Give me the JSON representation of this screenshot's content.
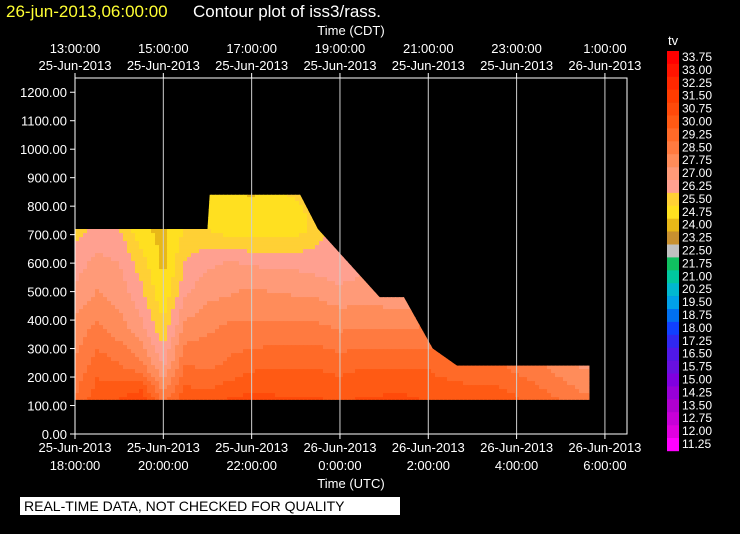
{
  "header": {
    "time_stamp": "26-jun-2013,06:00:00",
    "title": "Contour plot of iss3/rass."
  },
  "banner": "REAL-TIME DATA, NOT CHECKED FOR QUALITY",
  "chart_data": {
    "type": "heatmap",
    "title": "Contour plot of iss3/rass.",
    "top_axis_label": "Time (CDT)",
    "xlabel": "Time (UTC)",
    "ylabel": "",
    "x_unit": "hours since 25-Jun-2013 18:00 UTC",
    "xlim": [
      0,
      12.5
    ],
    "ylim": [
      0,
      1250
    ],
    "grid": true,
    "bottom_ticks": [
      {
        "x": 0,
        "date": "25-Jun-2013",
        "time": "18:00:00"
      },
      {
        "x": 2,
        "date": "25-Jun-2013",
        "time": "20:00:00"
      },
      {
        "x": 4,
        "date": "25-Jun-2013",
        "time": "22:00:00"
      },
      {
        "x": 6,
        "date": "26-Jun-2013",
        "time": "0:00:00"
      },
      {
        "x": 8,
        "date": "26-Jun-2013",
        "time": "2:00:00"
      },
      {
        "x": 10,
        "date": "26-Jun-2013",
        "time": "4:00:00"
      },
      {
        "x": 12,
        "date": "26-Jun-2013",
        "time": "6:00:00"
      }
    ],
    "top_ticks": [
      {
        "x": 0,
        "time": "13:00:00",
        "date": "25-Jun-2013"
      },
      {
        "x": 2,
        "time": "15:00:00",
        "date": "25-Jun-2013"
      },
      {
        "x": 4,
        "time": "17:00:00",
        "date": "25-Jun-2013"
      },
      {
        "x": 6,
        "time": "19:00:00",
        "date": "25-Jun-2013"
      },
      {
        "x": 8,
        "time": "21:00:00",
        "date": "25-Jun-2013"
      },
      {
        "x": 10,
        "time": "23:00:00",
        "date": "25-Jun-2013"
      },
      {
        "x": 12,
        "time": "1:00:00",
        "date": "26-Jun-2013"
      }
    ],
    "y_ticks": [
      {
        "v": 0,
        "label": "0.00"
      },
      {
        "v": 100,
        "label": "100.00"
      },
      {
        "v": 200,
        "label": "200.00"
      },
      {
        "v": 300,
        "label": "300.00"
      },
      {
        "v": 400,
        "label": "400.00"
      },
      {
        "v": 500,
        "label": "500.00"
      },
      {
        "v": 600,
        "label": "600.00"
      },
      {
        "v": 700,
        "label": "700.00"
      },
      {
        "v": 800,
        "label": "800.00"
      },
      {
        "v": 900,
        "label": "900.00"
      },
      {
        "v": 1000,
        "label": "1000.00"
      },
      {
        "v": 1100,
        "label": "1100.00"
      },
      {
        "v": 1200,
        "label": "1200.00"
      }
    ],
    "colorbar": {
      "title": "tv",
      "levels": [
        "33.75",
        "33.00",
        "32.25",
        "31.50",
        "30.75",
        "30.00",
        "29.25",
        "28.50",
        "27.75",
        "27.00",
        "26.25",
        "25.50",
        "24.75",
        "24.00",
        "23.25",
        "22.50",
        "21.75",
        "21.00",
        "20.25",
        "19.50",
        "18.75",
        "18.00",
        "17.25",
        "16.50",
        "15.75",
        "15.00",
        "14.25",
        "13.50",
        "12.75",
        "12.00",
        "11.25"
      ],
      "colors": [
        "#ff0000",
        "#ff1400",
        "#ff2800",
        "#ff3c00",
        "#ff4a0a",
        "#ff5a14",
        "#ff6a28",
        "#ff7a40",
        "#ff8c5a",
        "#ff9a78",
        "#ffa090",
        "#ffd035",
        "#ffe020",
        "#e8b818",
        "#c89030",
        "#c0c0c0",
        "#10c060",
        "#00c8a0",
        "#00b8d0",
        "#00a0e8",
        "#0070f0",
        "#1040ff",
        "#3028f0",
        "#5018e8",
        "#6810e0",
        "#8000e0",
        "#9800d8",
        "#b000d0",
        "#c800d8",
        "#e000e0",
        "#ff00ff"
      ]
    },
    "data_extent": [
      {
        "x": 0,
        "y": 480
      },
      {
        "x": 0,
        "y": 720
      },
      {
        "x": 3,
        "y": 720
      },
      {
        "x": 3.05,
        "y": 840
      },
      {
        "x": 5.1,
        "y": 840
      },
      {
        "x": 5.5,
        "y": 720
      },
      {
        "x": 6.9,
        "y": 480
      },
      {
        "x": 7.45,
        "y": 480
      },
      {
        "x": 8.1,
        "y": 300
      },
      {
        "x": 8.65,
        "y": 240
      },
      {
        "x": 11.65,
        "y": 240
      },
      {
        "x": 11.65,
        "y": 120
      },
      {
        "x": 0,
        "y": 120
      }
    ],
    "x": [
      0,
      0.5,
      1,
      1.5,
      2,
      2.5,
      3,
      3.5,
      4,
      4.5,
      5,
      5.5,
      6,
      6.5,
      7,
      7.5,
      8,
      8.5,
      9,
      9.5,
      10,
      10.5,
      11,
      11.5
    ],
    "y": [
      120,
      240,
      360,
      480,
      600,
      720,
      840
    ],
    "z": [
      [
        29.3,
        30.5,
        30.8,
        31.5,
        29.0,
        30.5,
        30.3,
        30.8,
        31.0,
        30.9,
        30.8,
        30.8,
        30.7,
        30.8,
        30.9,
        30.9,
        30.7,
        30.6,
        30.5,
        30.5,
        30.1,
        29.7,
        29.2,
        28.7
      ],
      [
        28.6,
        29.7,
        29.3,
        28.7,
        26.9,
        29.3,
        29.1,
        29.4,
        29.8,
        29.9,
        29.9,
        29.9,
        29.7,
        29.9,
        29.9,
        29.9,
        29.9,
        29.5,
        29.4,
        29.4,
        29.0,
        28.6,
        28.1,
        27.6
      ],
      [
        28.1,
        28.8,
        28.2,
        27.3,
        25.8,
        28.1,
        28.4,
        28.8,
        28.7,
        28.8,
        28.9,
        28.8,
        28.5,
        28.6,
        28.6,
        28.6,
        28.7,
        null,
        null,
        null,
        null,
        null,
        null,
        null
      ],
      [
        27.3,
        27.9,
        27.5,
        26.5,
        25.0,
        27.0,
        27.6,
        27.8,
        28.1,
        27.9,
        27.8,
        27.7,
        27.4,
        27.5,
        27.4,
        27.4,
        null,
        null,
        null,
        null,
        null,
        null,
        null,
        null
      ],
      [
        26.6,
        27.3,
        27.0,
        25.9,
        24.5,
        26.3,
        26.8,
        27.1,
        26.9,
        26.8,
        26.8,
        26.6,
        26.3,
        26.8,
        26.6,
        null,
        null,
        null,
        null,
        null,
        null,
        null,
        null,
        null
      ],
      [
        26.0,
        26.4,
        26.3,
        24.9,
        24.5,
        25.6,
        25.5,
        25.0,
        25.0,
        25.0,
        25.0,
        26.0,
        26.6,
        26.7,
        null,
        null,
        null,
        null,
        null,
        null,
        null,
        null,
        null,
        null
      ],
      [
        null,
        null,
        null,
        null,
        null,
        null,
        24.9,
        24.9,
        24.7,
        25.3,
        25.6,
        null,
        null,
        null,
        null,
        null,
        null,
        null,
        null,
        null,
        null,
        null,
        null,
        null
      ]
    ]
  }
}
